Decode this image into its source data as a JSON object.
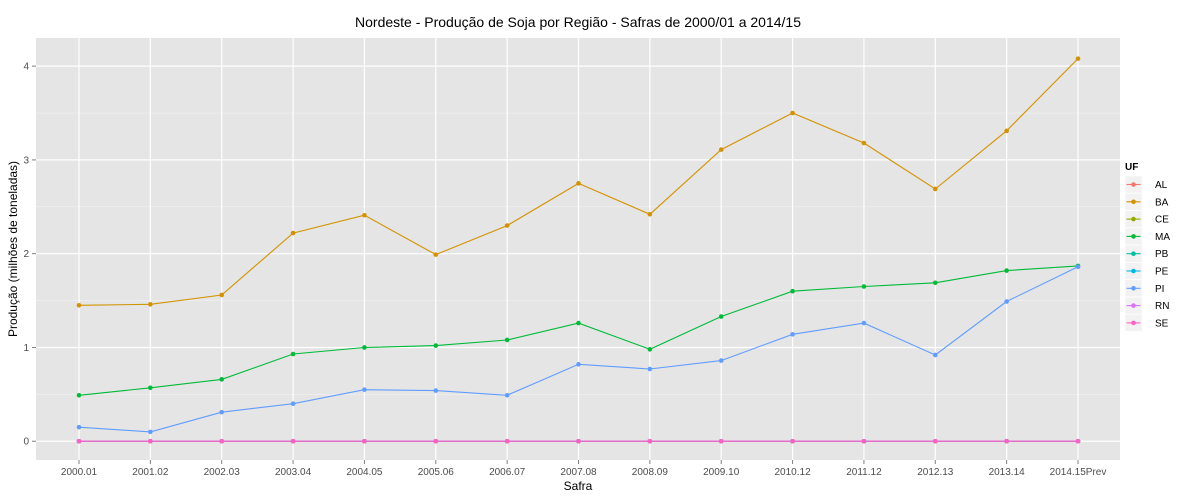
{
  "chart_data": {
    "type": "line",
    "title": "Nordeste  - Produção de Soja por Região - Safras de 2000/01 a 2014/15",
    "xlabel": "Safra",
    "ylabel": "Produção (milhões de toneladas)",
    "categories": [
      "2000.01",
      "2001.02",
      "2002.03",
      "2003.04",
      "2004.05",
      "2005.06",
      "2006.07",
      "2007.08",
      "2008.09",
      "2009.10",
      "2010.12",
      "2011.12",
      "2012.13",
      "2013.14",
      "2014.15Prev"
    ],
    "ylim": [
      -0.2,
      4.3
    ],
    "yticks": [
      0,
      1,
      2,
      3,
      4
    ],
    "grid": true,
    "legend_title": "UF",
    "legend_position": "right",
    "series": [
      {
        "name": "AL",
        "color": "#F8766D",
        "values": [
          0,
          0,
          0,
          0,
          0,
          0,
          0,
          0,
          0,
          0,
          0,
          0,
          0,
          0,
          0
        ]
      },
      {
        "name": "BA",
        "color": "#D39200",
        "values": [
          1.45,
          1.46,
          1.56,
          2.22,
          2.41,
          1.99,
          2.3,
          2.75,
          2.42,
          3.11,
          3.5,
          3.18,
          2.69,
          3.31,
          4.08
        ]
      },
      {
        "name": "CE",
        "color": "#93AA00",
        "values": [
          0,
          0,
          0,
          0,
          0,
          0,
          0,
          0,
          0,
          0,
          0,
          0,
          0,
          0,
          0
        ]
      },
      {
        "name": "MA",
        "color": "#00BA38",
        "values": [
          0.49,
          0.57,
          0.66,
          0.93,
          1.0,
          1.02,
          1.08,
          1.26,
          0.98,
          1.33,
          1.6,
          1.65,
          1.69,
          1.82,
          1.87
        ]
      },
      {
        "name": "PB",
        "color": "#00C19F",
        "values": [
          0,
          0,
          0,
          0,
          0,
          0,
          0,
          0,
          0,
          0,
          0,
          0,
          0,
          0,
          0
        ]
      },
      {
        "name": "PE",
        "color": "#00B9E3",
        "values": [
          0,
          0,
          0,
          0,
          0,
          0,
          0,
          0,
          0,
          0,
          0,
          0,
          0,
          0,
          0
        ]
      },
      {
        "name": "PI",
        "color": "#619CFF",
        "values": [
          0.15,
          0.1,
          0.31,
          0.4,
          0.55,
          0.54,
          0.49,
          0.82,
          0.77,
          0.86,
          1.14,
          1.26,
          0.92,
          1.49,
          1.86
        ]
      },
      {
        "name": "RN",
        "color": "#DB72FB",
        "values": [
          0,
          0,
          0,
          0,
          0,
          0,
          0,
          0,
          0,
          0,
          0,
          0,
          0,
          0,
          0
        ]
      },
      {
        "name": "SE",
        "color": "#FF61C3",
        "values": [
          0,
          0,
          0,
          0,
          0,
          0,
          0,
          0,
          0,
          0,
          0,
          0,
          0,
          0,
          0
        ]
      }
    ]
  }
}
